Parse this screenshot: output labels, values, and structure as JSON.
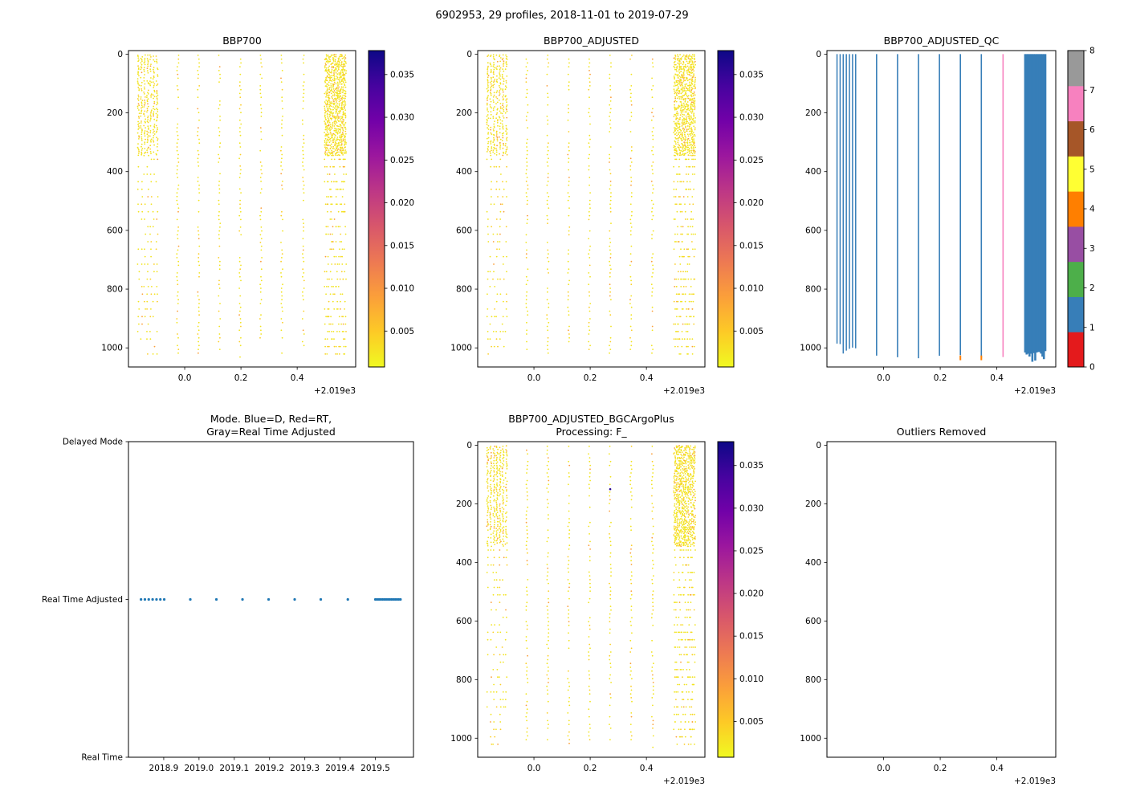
{
  "figure": {
    "title": "6902953, 29 profiles, 2018-11-01 to 2019-07-29",
    "background": "#ffffff",
    "float_id": "6902953",
    "date_range": "2018-11-01 to 2019-07-29"
  },
  "colors": {
    "point_yellow": "#f2e41e",
    "point_gold": "#fcce25",
    "point_orange": "#fb9f3a",
    "mode_dot": "#1f77b4",
    "axis": "#000000"
  },
  "plasma_stops": [
    "#0d0887",
    "#46039f",
    "#7201a8",
    "#9c179e",
    "#bd3786",
    "#d8576b",
    "#ed7953",
    "#fb9f3a",
    "#fdca26",
    "#f0f921"
  ],
  "set1_colors": [
    "#e41a1c",
    "#377eb8",
    "#4daf4a",
    "#984ea3",
    "#ff7f00",
    "#ffff33",
    "#a65628",
    "#f781bf",
    "#999999"
  ],
  "profiles": {
    "count": 29,
    "x_offsets": [
      -0.1644,
      -0.1534,
      -0.1425,
      -0.1315,
      -0.1205,
      -0.1096,
      -0.0986,
      -0.0247,
      0.0493,
      0.1233,
      0.1973,
      0.2712,
      0.3452,
      0.4219,
      0.5,
      0.5051,
      0.5102,
      0.5153,
      0.5204,
      0.5254,
      0.5305,
      0.5356,
      0.5407,
      0.5458,
      0.5509,
      0.556,
      0.561,
      0.5661,
      0.5712
    ],
    "qc_flags": [
      1,
      1,
      1,
      1,
      1,
      1,
      1,
      1,
      1,
      1,
      1,
      1,
      1,
      7,
      1,
      1,
      1,
      1,
      1,
      1,
      1,
      1,
      1,
      1,
      1,
      1,
      1,
      1,
      1
    ],
    "qc_bottom_orange_x": [
      0.2712,
      0.3452
    ]
  },
  "chart_data": [
    {
      "id": "bbp700",
      "type": "depth-scatter",
      "title": "BBP700",
      "seed": 42,
      "xlim": [
        -0.2,
        0.608
      ],
      "xticks": [
        0.0,
        0.2,
        0.4
      ],
      "xtick_labels": [
        "0.0",
        "0.2",
        "0.4"
      ],
      "offset_text": "+2.019e3",
      "ylim": [
        -12,
        1065
      ],
      "yticks": [
        0,
        200,
        400,
        600,
        800,
        1000
      ],
      "ytick_labels": [
        "0",
        "200",
        "400",
        "600",
        "800",
        "1000"
      ],
      "colorbar": {
        "kind": "continuous",
        "cmap": "plasma_r",
        "vmin": 0.0008,
        "vmax": 0.0378,
        "ticks": [
          0.005,
          0.01,
          0.015,
          0.02,
          0.025,
          0.03,
          0.035
        ],
        "tick_labels": [
          "0.005",
          "0.010",
          "0.015",
          "0.020",
          "0.025",
          "0.030",
          "0.035"
        ]
      }
    },
    {
      "id": "bbp700_adjusted",
      "type": "depth-scatter",
      "title": "BBP700_ADJUSTED",
      "seed": 77,
      "xlim": [
        -0.2,
        0.608
      ],
      "xticks": [
        0.0,
        0.2,
        0.4
      ],
      "xtick_labels": [
        "0.0",
        "0.2",
        "0.4"
      ],
      "offset_text": "+2.019e3",
      "ylim": [
        -12,
        1065
      ],
      "yticks": [
        0,
        200,
        400,
        600,
        800,
        1000
      ],
      "ytick_labels": [
        "0",
        "200",
        "400",
        "600",
        "800",
        "1000"
      ],
      "colorbar": {
        "kind": "continuous",
        "cmap": "plasma_r",
        "vmin": 0.0008,
        "vmax": 0.0378,
        "ticks": [
          0.005,
          0.01,
          0.015,
          0.02,
          0.025,
          0.03,
          0.035
        ],
        "tick_labels": [
          "0.005",
          "0.010",
          "0.015",
          "0.020",
          "0.025",
          "0.030",
          "0.035"
        ]
      }
    },
    {
      "id": "qc",
      "type": "qc",
      "title": "BBP700_ADJUSTED_QC",
      "seed": 7,
      "xlim": [
        -0.2,
        0.608
      ],
      "xticks": [
        0.0,
        0.2,
        0.4
      ],
      "xtick_labels": [
        "0.0",
        "0.2",
        "0.4"
      ],
      "offset_text": "+2.019e3",
      "ylim": [
        -12,
        1065
      ],
      "yticks": [
        0,
        200,
        400,
        600,
        800,
        1000
      ],
      "ytick_labels": [
        "0",
        "200",
        "400",
        "600",
        "800",
        "1000"
      ],
      "colorbar": {
        "kind": "discrete",
        "ticks": [
          0,
          1,
          2,
          3,
          4,
          5,
          6,
          7,
          8
        ],
        "tick_labels": [
          "0",
          "1",
          "2",
          "3",
          "4",
          "5",
          "6",
          "7",
          "8"
        ]
      }
    },
    {
      "id": "mode",
      "type": "mode",
      "title_lines": [
        "Mode. Blue=D, Red=RT,",
        "Gray=Real Time Adjusted"
      ],
      "xlim": [
        2018.8,
        2019.608
      ],
      "xticks": [
        2018.9,
        2019.0,
        2019.1,
        2019.2,
        2019.3,
        2019.4,
        2019.5
      ],
      "xtick_labels": [
        "2018.9",
        "2019.0",
        "2019.1",
        "2019.2",
        "2019.3",
        "2019.4",
        "2019.5"
      ],
      "ylim": [
        2,
        0
      ],
      "yticks": [
        2,
        1,
        0
      ],
      "ytick_labels": [
        "Delayed Mode",
        "Real Time Adjusted",
        "Real Time"
      ],
      "mode_level_label": "Real Time Adjusted",
      "mode_level_value": 1,
      "dot_color": "#1f77b4"
    },
    {
      "id": "bgc",
      "type": "depth-scatter",
      "title_lines": [
        "BBP700_ADJUSTED_BGCArgoPlus",
        "Processing: F_"
      ],
      "seed": 99,
      "xlim": [
        -0.2,
        0.608
      ],
      "xticks": [
        0.0,
        0.2,
        0.4
      ],
      "xtick_labels": [
        "0.0",
        "0.2",
        "0.4"
      ],
      "offset_text": "+2.019e3",
      "ylim": [
        -12,
        1065
      ],
      "yticks": [
        0,
        200,
        400,
        600,
        800,
        1000
      ],
      "ytick_labels": [
        "0",
        "200",
        "400",
        "600",
        "800",
        "1000"
      ],
      "extra_points": [
        {
          "x": 0.2712,
          "depth": 150,
          "color": "#2b0a90"
        }
      ],
      "colorbar": {
        "kind": "continuous",
        "cmap": "plasma_r",
        "vmin": 0.0008,
        "vmax": 0.0378,
        "ticks": [
          0.005,
          0.01,
          0.015,
          0.02,
          0.025,
          0.03,
          0.035
        ],
        "tick_labels": [
          "0.005",
          "0.010",
          "0.015",
          "0.020",
          "0.025",
          "0.030",
          "0.035"
        ]
      }
    },
    {
      "id": "outliers",
      "type": "empty",
      "title": "Outliers Removed",
      "xlim": [
        -0.2,
        0.608
      ],
      "xticks": [
        0.0,
        0.2,
        0.4
      ],
      "xtick_labels": [
        "0.0",
        "0.2",
        "0.4"
      ],
      "offset_text": "+2.019e3",
      "ylim": [
        -12,
        1065
      ],
      "yticks": [
        0,
        200,
        400,
        600,
        800,
        1000
      ],
      "ytick_labels": [
        "0",
        "200",
        "400",
        "600",
        "800",
        "1000"
      ]
    }
  ]
}
